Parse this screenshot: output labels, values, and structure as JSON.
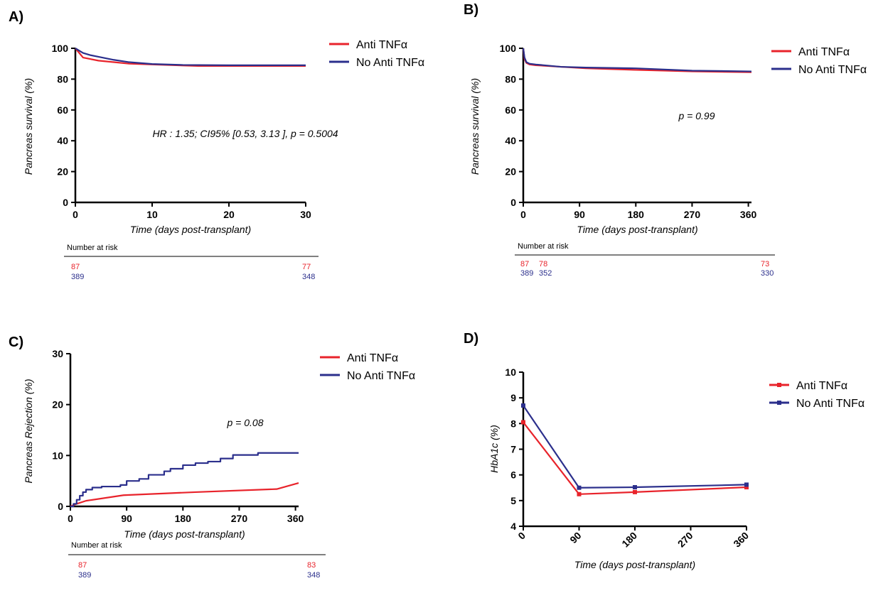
{
  "colors": {
    "anti": "#e8232b",
    "no_anti": "#2b2f8c",
    "axis": "#000000"
  },
  "chart_data": [
    {
      "panel": "A)",
      "type": "line",
      "xlabel": "Time (days post-transplant)",
      "ylabel": "Pancreas survival (%)",
      "xlim": [
        0,
        30
      ],
      "ylim": [
        0,
        100
      ],
      "xticks": [
        "0",
        "10",
        "20",
        "30"
      ],
      "yticks": [
        "0",
        "20",
        "40",
        "60",
        "80",
        "100"
      ],
      "legend": "top-right",
      "annotation": "HR : 1.35; CI95% [0.53, 3.13 ], p = 0.5004",
      "series": [
        {
          "name": "Anti TNFα",
          "color": "#e8232b",
          "x": [
            0,
            0.5,
            1,
            3,
            5,
            7,
            10,
            16,
            30
          ],
          "y": [
            100,
            97,
            94,
            92,
            91,
            90,
            89.5,
            88.5,
            88.5
          ]
        },
        {
          "name": "No Anti TNFα",
          "color": "#2b2f8c",
          "x": [
            0,
            0.5,
            1,
            2,
            3,
            5,
            7,
            10,
            14,
            20,
            30
          ],
          "y": [
            100,
            98.5,
            97,
            95.5,
            94.5,
            92.5,
            91,
            89.8,
            89.2,
            89,
            89
          ]
        }
      ],
      "number_at_risk": {
        "title": "Number at risk",
        "rows": [
          {
            "color": "#e8232b",
            "cells": [
              {
                "x": 0,
                "v": "87"
              },
              {
                "x": 30,
                "v": "77"
              }
            ]
          },
          {
            "color": "#2b2f8c",
            "cells": [
              {
                "x": 0,
                "v": "389"
              },
              {
                "x": 30,
                "v": "348"
              }
            ]
          }
        ]
      }
    },
    {
      "panel": "B)",
      "type": "line",
      "xlabel": "Time (days post-transplant)",
      "ylabel": "Pancreas survival (%)",
      "xlim": [
        0,
        365
      ],
      "ylim": [
        0,
        100
      ],
      "xticks": [
        "0",
        "90",
        "180",
        "270",
        "360"
      ],
      "yticks": [
        "0",
        "20",
        "40",
        "60",
        "80",
        "100"
      ],
      "legend": "top-right",
      "annotation": "p = 0.99",
      "series": [
        {
          "name": "Anti TNFα",
          "color": "#e8232b",
          "x": [
            0,
            2,
            5,
            10,
            20,
            60,
            100,
            180,
            270,
            365
          ],
          "y": [
            100,
            93,
            90.5,
            89.5,
            89,
            88,
            87,
            86,
            85,
            84.5
          ]
        },
        {
          "name": "No Anti TNFα",
          "color": "#2b2f8c",
          "x": [
            0,
            2,
            5,
            10,
            20,
            60,
            100,
            180,
            270,
            365
          ],
          "y": [
            100,
            94,
            91,
            90,
            89.5,
            88,
            87.5,
            87,
            85.5,
            85
          ]
        }
      ],
      "number_at_risk": {
        "title": "Number at risk",
        "rows": [
          {
            "color": "#e8232b",
            "cells": [
              {
                "x": 0,
                "v": "87"
              },
              {
                "x": 20,
                "v": "78"
              },
              {
                "x": 365,
                "v": "73"
              }
            ]
          },
          {
            "color": "#2b2f8c",
            "cells": [
              {
                "x": 0,
                "v": "389"
              },
              {
                "x": 20,
                "v": "352"
              },
              {
                "x": 365,
                "v": "330"
              }
            ]
          }
        ]
      }
    },
    {
      "panel": "C)",
      "type": "line",
      "xlabel": "Time (days post-transplant)",
      "ylabel": "Pancreas Rejection (%)",
      "xlim": [
        0,
        365
      ],
      "ylim": [
        0,
        30
      ],
      "xticks": [
        "0",
        "90",
        "180",
        "270",
        "360"
      ],
      "yticks": [
        "0",
        "10",
        "20",
        "30"
      ],
      "legend": "top-right",
      "annotation": "p = 0.08",
      "series": [
        {
          "name": "Anti TNFα",
          "color": "#e8232b",
          "x": [
            0,
            10,
            25,
            85,
            200,
            330,
            365
          ],
          "y": [
            0,
            0.5,
            1.1,
            2.2,
            2.8,
            3.4,
            4.6
          ]
        },
        {
          "name": "No Anti TNFα",
          "color": "#2b2f8c",
          "x": [
            0,
            5,
            10,
            15,
            20,
            25,
            35,
            50,
            80,
            90,
            110,
            125,
            150,
            160,
            180,
            200,
            220,
            240,
            260,
            300,
            365
          ],
          "y": [
            0,
            0.5,
            1.3,
            2.1,
            2.8,
            3.3,
            3.7,
            3.9,
            4.2,
            5.0,
            5.4,
            6.2,
            6.9,
            7.4,
            8.1,
            8.5,
            8.8,
            9.4,
            10.1,
            10.5,
            10.5
          ]
        }
      ],
      "number_at_risk": {
        "title": "Number at risk",
        "rows": [
          {
            "color": "#e8232b",
            "cells": [
              {
                "x": 0,
                "v": "87"
              },
              {
                "x": 365,
                "v": "83"
              }
            ]
          },
          {
            "color": "#2b2f8c",
            "cells": [
              {
                "x": 0,
                "v": "389"
              },
              {
                "x": 365,
                "v": "348"
              }
            ]
          }
        ]
      }
    },
    {
      "panel": "D)",
      "type": "line",
      "xlabel": "Time (days post-transplant)",
      "ylabel": "HbA1c (%)",
      "xlim": [
        0,
        360
      ],
      "ylim": [
        4,
        10
      ],
      "xticks": [
        "0",
        "90",
        "180",
        "270",
        "360"
      ],
      "yticks": [
        "4",
        "5",
        "6",
        "7",
        "8",
        "9",
        "10"
      ],
      "legend": "top-right",
      "markers": true,
      "series": [
        {
          "name": "Anti TNFα",
          "color": "#e8232b",
          "x": [
            0,
            90,
            180,
            360
          ],
          "y": [
            8.05,
            5.25,
            5.33,
            5.52
          ]
        },
        {
          "name": "No Anti TNFα",
          "color": "#2b2f8c",
          "x": [
            0,
            90,
            180,
            360
          ],
          "y": [
            8.7,
            5.5,
            5.52,
            5.62
          ]
        }
      ]
    }
  ]
}
